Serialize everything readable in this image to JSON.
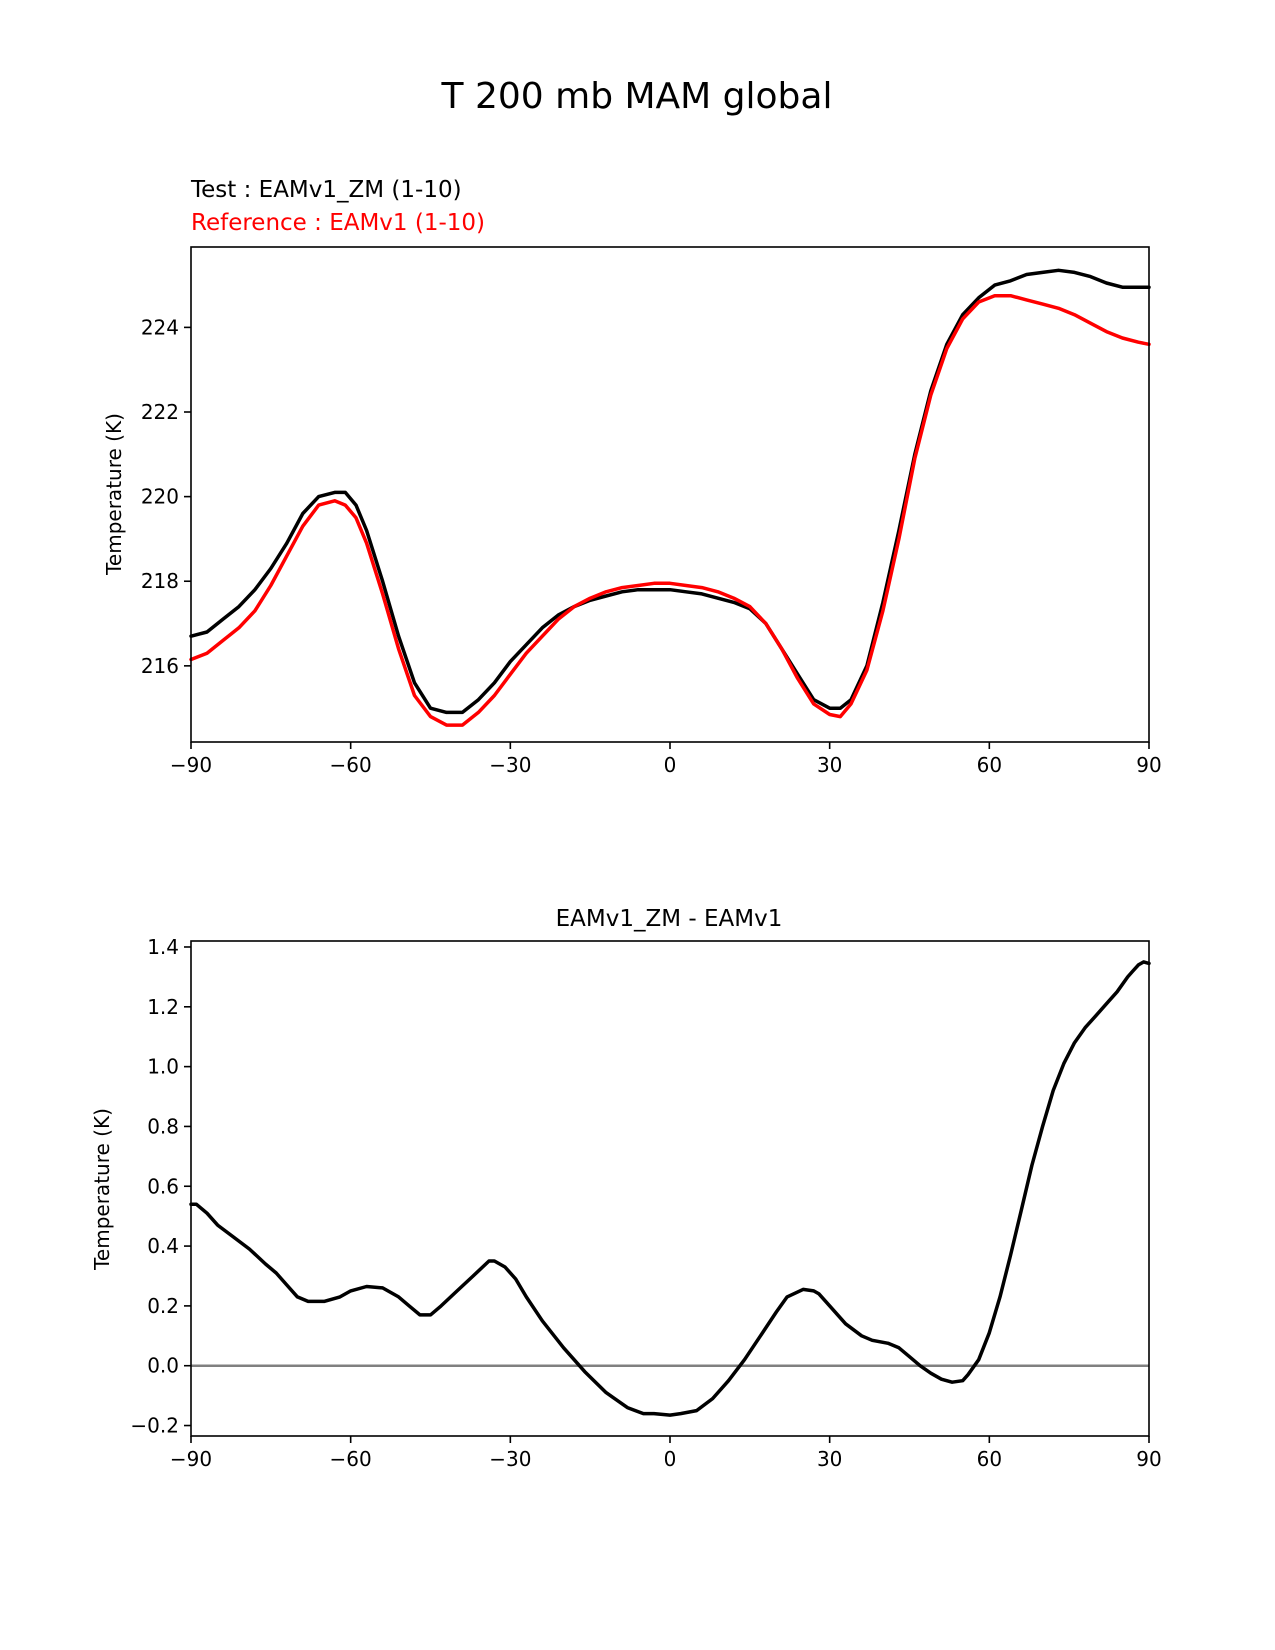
{
  "figure": {
    "title": "T 200 mb MAM global"
  },
  "chart_data": [
    {
      "type": "line",
      "subtitle_test": "Test : EAMv1_ZM (1-10)",
      "subtitle_reference": "Reference : EAMv1 (1-10)",
      "xlabel": "",
      "ylabel": "Temperature (K)",
      "xlim": [
        -90,
        90
      ],
      "ylim": [
        214.2,
        225.9
      ],
      "xticks": [
        -90,
        -60,
        -30,
        0,
        30,
        60,
        90
      ],
      "xtick_labels": [
        "−90",
        "−60",
        "−30",
        "0",
        "30",
        "60",
        "90"
      ],
      "yticks": [
        216,
        218,
        220,
        222,
        224
      ],
      "ytick_labels": [
        "216",
        "218",
        "220",
        "222",
        "224"
      ],
      "series": [
        {
          "name": "Test : EAMv1_ZM (1-10)",
          "color": "#000000",
          "x": [
            -90,
            -87,
            -84,
            -81,
            -78,
            -75,
            -72,
            -69,
            -66,
            -63,
            -61,
            -59,
            -57,
            -54,
            -51,
            -48,
            -45,
            -42,
            -39,
            -36,
            -33,
            -30,
            -27,
            -24,
            -21,
            -18,
            -15,
            -12,
            -9,
            -6,
            -3,
            0,
            3,
            6,
            9,
            12,
            15,
            18,
            21,
            24,
            27,
            30,
            32,
            34,
            37,
            40,
            43,
            46,
            49,
            52,
            55,
            58,
            61,
            64,
            67,
            70,
            73,
            76,
            79,
            82,
            85,
            88,
            90
          ],
          "y": [
            216.7,
            216.8,
            217.1,
            217.4,
            217.8,
            218.3,
            218.9,
            219.6,
            220.0,
            220.1,
            220.1,
            219.8,
            219.2,
            218.0,
            216.7,
            215.6,
            215.0,
            214.9,
            214.9,
            215.2,
            215.6,
            216.1,
            216.5,
            216.9,
            217.2,
            217.4,
            217.55,
            217.65,
            217.75,
            217.8,
            217.8,
            217.8,
            217.75,
            217.7,
            217.6,
            217.5,
            217.35,
            217.0,
            216.4,
            215.8,
            215.2,
            215.0,
            215.0,
            215.2,
            216.0,
            217.5,
            219.2,
            221.0,
            222.5,
            223.6,
            224.3,
            224.7,
            225.0,
            225.1,
            225.25,
            225.3,
            225.35,
            225.3,
            225.2,
            225.05,
            224.95,
            224.95,
            224.95
          ]
        },
        {
          "name": "Reference : EAMv1 (1-10)",
          "color": "#ff0000",
          "x": [
            -90,
            -87,
            -84,
            -81,
            -78,
            -75,
            -72,
            -69,
            -66,
            -63,
            -61,
            -59,
            -57,
            -54,
            -51,
            -48,
            -45,
            -42,
            -39,
            -36,
            -33,
            -30,
            -27,
            -24,
            -21,
            -18,
            -15,
            -12,
            -9,
            -6,
            -3,
            0,
            3,
            6,
            9,
            12,
            15,
            18,
            21,
            24,
            27,
            30,
            32,
            34,
            37,
            40,
            43,
            46,
            49,
            52,
            55,
            58,
            61,
            64,
            67,
            70,
            73,
            76,
            79,
            82,
            85,
            88,
            90
          ],
          "y": [
            216.15,
            216.3,
            216.6,
            216.9,
            217.3,
            217.9,
            218.6,
            219.3,
            219.8,
            219.9,
            219.8,
            219.5,
            218.9,
            217.7,
            216.4,
            215.3,
            214.8,
            214.6,
            214.6,
            214.9,
            215.3,
            215.8,
            216.3,
            216.7,
            217.1,
            217.4,
            217.6,
            217.75,
            217.85,
            217.9,
            217.95,
            217.95,
            217.9,
            217.85,
            217.75,
            217.6,
            217.4,
            217.0,
            216.4,
            215.7,
            215.1,
            214.85,
            214.8,
            215.1,
            215.9,
            217.3,
            219.0,
            220.9,
            222.4,
            223.5,
            224.2,
            224.6,
            224.75,
            224.75,
            224.65,
            224.55,
            224.45,
            224.3,
            224.1,
            223.9,
            223.75,
            223.65,
            223.6
          ]
        }
      ]
    },
    {
      "type": "line",
      "title": "EAMv1_ZM - EAMv1",
      "xlabel": "",
      "ylabel": "Temperature (K)",
      "xlim": [
        -90,
        90
      ],
      "ylim": [
        -0.235,
        1.42
      ],
      "xticks": [
        -90,
        -60,
        -30,
        0,
        30,
        60,
        90
      ],
      "xtick_labels": [
        "−90",
        "−60",
        "−30",
        "0",
        "30",
        "60",
        "90"
      ],
      "yticks": [
        -0.2,
        0.0,
        0.2,
        0.4,
        0.6,
        0.8,
        1.0,
        1.2,
        1.4
      ],
      "ytick_labels": [
        "−0.2",
        "0.0",
        "0.2",
        "0.4",
        "0.6",
        "0.8",
        "1.0",
        "1.2",
        "1.4"
      ],
      "zero_line": {
        "value": 0.0,
        "color": "#808080"
      },
      "series": [
        {
          "name": "EAMv1_ZM - EAMv1",
          "color": "#000000",
          "x": [
            -90,
            -89,
            -87,
            -85,
            -82,
            -79,
            -76,
            -74,
            -72,
            -70,
            -68,
            -65,
            -62,
            -60,
            -57,
            -54,
            -51,
            -49,
            -47,
            -45,
            -43,
            -40,
            -37,
            -34,
            -33,
            -31,
            -29,
            -27,
            -24,
            -20,
            -16,
            -12,
            -8,
            -5,
            -3,
            0,
            2,
            5,
            8,
            11,
            14,
            17,
            20,
            22,
            25,
            27,
            28,
            30,
            33,
            36,
            38,
            41,
            43,
            45,
            47,
            49,
            51,
            53,
            55,
            56,
            58,
            60,
            62,
            64,
            66,
            68,
            70,
            72,
            74,
            76,
            78,
            80,
            82,
            84,
            86,
            87,
            88,
            89,
            90
          ],
          "y": [
            0.54,
            0.54,
            0.51,
            0.47,
            0.43,
            0.39,
            0.34,
            0.31,
            0.27,
            0.23,
            0.215,
            0.215,
            0.23,
            0.25,
            0.265,
            0.26,
            0.23,
            0.2,
            0.17,
            0.17,
            0.2,
            0.25,
            0.3,
            0.35,
            0.35,
            0.33,
            0.29,
            0.23,
            0.15,
            0.06,
            -0.02,
            -0.09,
            -0.14,
            -0.16,
            -0.16,
            -0.165,
            -0.16,
            -0.15,
            -0.11,
            -0.05,
            0.02,
            0.1,
            0.18,
            0.23,
            0.255,
            0.25,
            0.24,
            0.2,
            0.14,
            0.1,
            0.085,
            0.075,
            0.06,
            0.03,
            0.0,
            -0.025,
            -0.045,
            -0.055,
            -0.05,
            -0.03,
            0.02,
            0.11,
            0.23,
            0.37,
            0.52,
            0.67,
            0.8,
            0.92,
            1.01,
            1.08,
            1.13,
            1.17,
            1.21,
            1.25,
            1.3,
            1.32,
            1.34,
            1.35,
            1.345
          ]
        }
      ]
    }
  ]
}
